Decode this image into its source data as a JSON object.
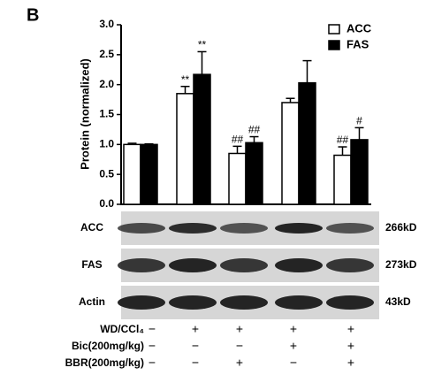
{
  "panel_label": "B",
  "chart_data": {
    "type": "bar",
    "y_label": "Protein (normalized)",
    "ylim": [
      0,
      3
    ],
    "yticks": [
      {
        "value": 0,
        "label": "0.0"
      },
      0.5,
      {
        "value": 1,
        "label": "1.0"
      },
      1.5,
      {
        "value": 2,
        "label": "2.0"
      },
      2.5,
      {
        "value": 3,
        "label": "3.0"
      }
    ],
    "legend": "upper right",
    "series": [
      {
        "name": "ACC",
        "color": "#ffffff",
        "values": [
          1.0,
          1.85,
          0.85,
          1.7,
          0.82
        ],
        "errors": [
          0.02,
          0.12,
          0.12,
          0.07,
          0.14
        ],
        "annotations": [
          null,
          "**",
          "##",
          null,
          "##"
        ]
      },
      {
        "name": "FAS",
        "color": "#000000",
        "values": [
          1.0,
          2.17,
          1.03,
          2.03,
          1.08
        ],
        "errors": [
          0.01,
          0.38,
          0.1,
          0.37,
          0.2
        ],
        "annotations": [
          null,
          "**",
          "##",
          null,
          "#"
        ]
      }
    ]
  },
  "blots": [
    {
      "label": "ACC",
      "size": "266kD"
    },
    {
      "label": "FAS",
      "size": "273kD"
    },
    {
      "label": "Actin",
      "size": "43kD"
    }
  ],
  "treatments": [
    {
      "label": "WD/CCl₄",
      "signs": [
        "−",
        "+",
        "+",
        "+",
        "+"
      ]
    },
    {
      "label": "Bic(200mg/kg)",
      "signs": [
        "−",
        "−",
        "−",
        "+",
        "+"
      ]
    },
    {
      "label": "BBR(200mg/kg)",
      "signs": [
        "−",
        "−",
        "+",
        "−",
        "+"
      ]
    }
  ]
}
